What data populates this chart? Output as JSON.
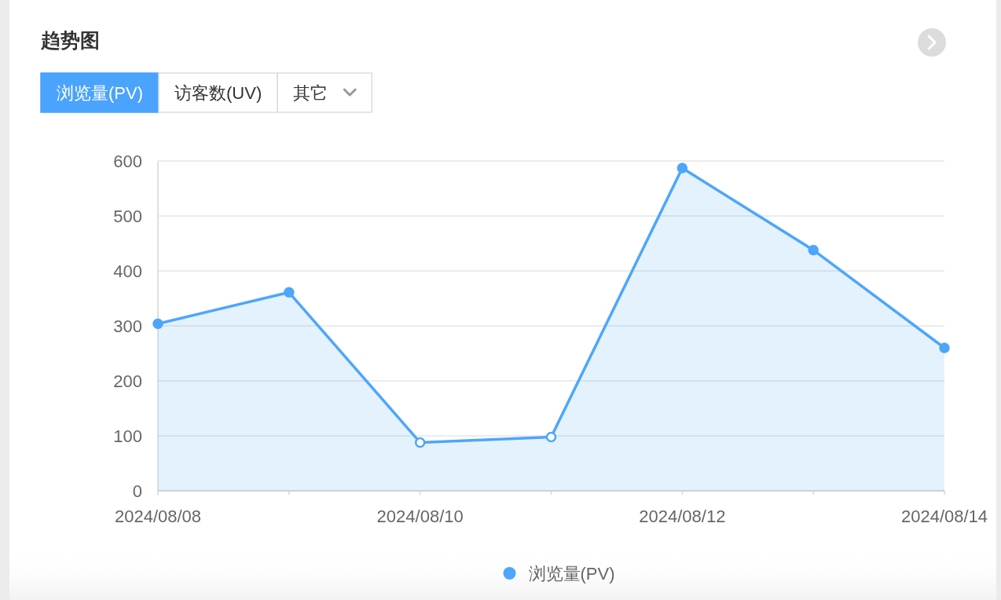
{
  "chart_data": {
    "type": "area",
    "title": "趋势图",
    "annotations": [
      "浏览量(PV)",
      "访客数(UV)",
      "其它"
    ],
    "categories": [
      "2024/08/08",
      null,
      "2024/08/10",
      null,
      "2024/08/12",
      null,
      "2024/08/14"
    ],
    "series": [
      {
        "name": "浏览量(PV)",
        "color": "#4da6fb",
        "colors": [
          "#4da6fb",
          "#4da6fb",
          "#ffffff",
          "#ffffff",
          "#4da6fb",
          "#4da6fb",
          "#4da6fb"
        ],
        "values": [
          304,
          361,
          88,
          98,
          587,
          438,
          260
        ]
      }
    ],
    "ylim": [
      0,
      600
    ],
    "yticks": [
      0,
      100,
      200,
      300,
      400,
      500,
      600
    ],
    "grid": "y",
    "legend": "bottom",
    "marker": "circle"
  }
}
